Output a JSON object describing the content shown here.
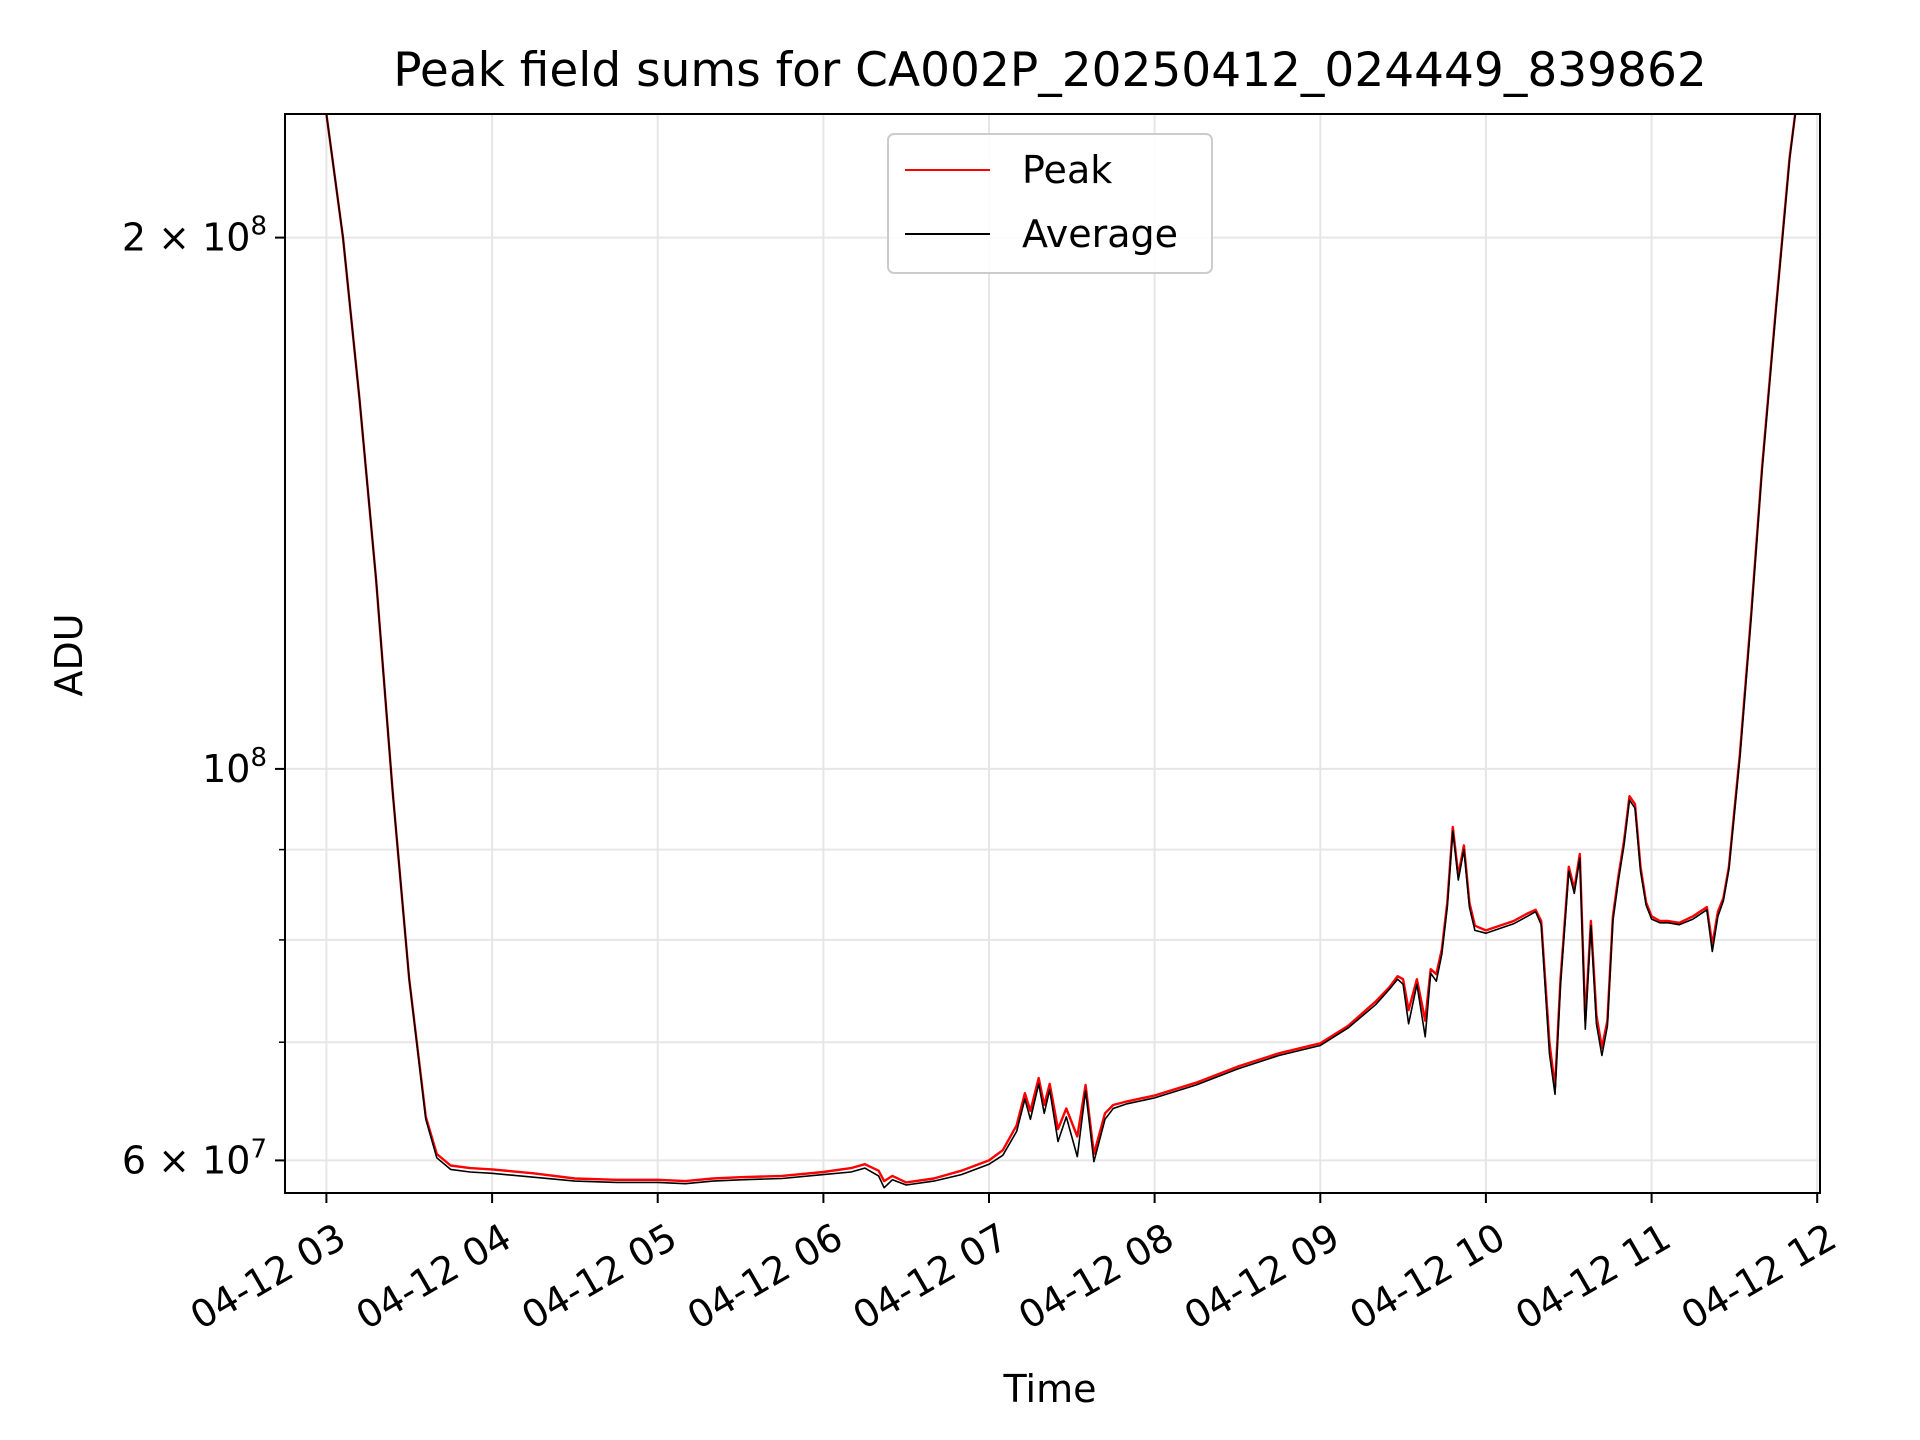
{
  "chart_data": {
    "type": "line",
    "title": "Peak field sums for CA002P_20250412_024449_839862",
    "xlabel": "Time",
    "ylabel": "ADU",
    "y_scale": "log",
    "ylim": [
      57500000,
      235000000
    ],
    "xlim": [
      "2025-04-12 02:45",
      "2025-04-12 12:01"
    ],
    "grid": true,
    "legend_position": "top-center",
    "x_ticks": [
      "04-12 03",
      "04-12 04",
      "04-12 05",
      "04-12 06",
      "04-12 07",
      "04-12 08",
      "04-12 09",
      "04-12 10",
      "04-12 11",
      "04-12 12"
    ],
    "x_tick_times": [
      "2025-04-12 03:00",
      "2025-04-12 04:00",
      "2025-04-12 05:00",
      "2025-04-12 06:00",
      "2025-04-12 07:00",
      "2025-04-12 08:00",
      "2025-04-12 09:00",
      "2025-04-12 10:00",
      "2025-04-12 11:00",
      "2025-04-12 12:00"
    ],
    "y_ticks_major": [
      {
        "value": 60000000,
        "base": "6 × 10",
        "exp": "7"
      },
      {
        "value": 100000000,
        "base": "10",
        "exp": "8"
      },
      {
        "value": 200000000,
        "base": "2 × 10",
        "exp": "8"
      }
    ],
    "y_ticks_minor": [
      70000000,
      80000000,
      90000000
    ],
    "series": [
      {
        "name": "Peak",
        "color": "#ff0000",
        "x": [
          "2025-04-12 03:00",
          "2025-04-12 03:06",
          "2025-04-12 03:12",
          "2025-04-12 03:18",
          "2025-04-12 03:24",
          "2025-04-12 03:30",
          "2025-04-12 03:36",
          "2025-04-12 03:40",
          "2025-04-12 03:45",
          "2025-04-12 03:52",
          "2025-04-12 04:00",
          "2025-04-12 04:15",
          "2025-04-12 04:30",
          "2025-04-12 04:45",
          "2025-04-12 05:00",
          "2025-04-12 05:10",
          "2025-04-12 05:20",
          "2025-04-12 05:30",
          "2025-04-12 05:45",
          "2025-04-12 06:00",
          "2025-04-12 06:10",
          "2025-04-12 06:15",
          "2025-04-12 06:20",
          "2025-04-12 06:22",
          "2025-04-12 06:25",
          "2025-04-12 06:30",
          "2025-04-12 06:40",
          "2025-04-12 06:50",
          "2025-04-12 07:00",
          "2025-04-12 07:05",
          "2025-04-12 07:10",
          "2025-04-12 07:13",
          "2025-04-12 07:15",
          "2025-04-12 07:18",
          "2025-04-12 07:20",
          "2025-04-12 07:22",
          "2025-04-12 07:25",
          "2025-04-12 07:28",
          "2025-04-12 07:32",
          "2025-04-12 07:35",
          "2025-04-12 07:38",
          "2025-04-12 07:42",
          "2025-04-12 07:45",
          "2025-04-12 07:50",
          "2025-04-12 08:00",
          "2025-04-12 08:15",
          "2025-04-12 08:30",
          "2025-04-12 08:45",
          "2025-04-12 09:00",
          "2025-04-12 09:10",
          "2025-04-12 09:20",
          "2025-04-12 09:25",
          "2025-04-12 09:28",
          "2025-04-12 09:30",
          "2025-04-12 09:32",
          "2025-04-12 09:35",
          "2025-04-12 09:38",
          "2025-04-12 09:40",
          "2025-04-12 09:42",
          "2025-04-12 09:44",
          "2025-04-12 09:46",
          "2025-04-12 09:48",
          "2025-04-12 09:50",
          "2025-04-12 09:52",
          "2025-04-12 09:54",
          "2025-04-12 09:56",
          "2025-04-12 10:00",
          "2025-04-12 10:10",
          "2025-04-12 10:15",
          "2025-04-12 10:18",
          "2025-04-12 10:20",
          "2025-04-12 10:23",
          "2025-04-12 10:25",
          "2025-04-12 10:27",
          "2025-04-12 10:30",
          "2025-04-12 10:32",
          "2025-04-12 10:34",
          "2025-04-12 10:36",
          "2025-04-12 10:38",
          "2025-04-12 10:40",
          "2025-04-12 10:42",
          "2025-04-12 10:44",
          "2025-04-12 10:46",
          "2025-04-12 10:48",
          "2025-04-12 10:50",
          "2025-04-12 10:52",
          "2025-04-12 10:54",
          "2025-04-12 10:56",
          "2025-04-12 10:58",
          "2025-04-12 11:00",
          "2025-04-12 11:03",
          "2025-04-12 11:06",
          "2025-04-12 11:10",
          "2025-04-12 11:15",
          "2025-04-12 11:20",
          "2025-04-12 11:22",
          "2025-04-12 11:24",
          "2025-04-12 11:26",
          "2025-04-12 11:28",
          "2025-04-12 11:32",
          "2025-04-12 11:36",
          "2025-04-12 11:40",
          "2025-04-12 11:45",
          "2025-04-12 11:50",
          "2025-04-12 11:52"
        ],
        "y": [
          235000000,
          200000000,
          162000000,
          128000000,
          97000000,
          76000000,
          63500000,
          60500000,
          59600000,
          59400000,
          59300000,
          59000000,
          58600000,
          58500000,
          58500000,
          58400000,
          58600000,
          58700000,
          58800000,
          59100000,
          59400000,
          59700000,
          59200000,
          58400000,
          58800000,
          58300000,
          58600000,
          59200000,
          60000000,
          60800000,
          62800000,
          65500000,
          64000000,
          66800000,
          64500000,
          66300000,
          62500000,
          64200000,
          61900000,
          66200000,
          60500000,
          63800000,
          64500000,
          64800000,
          65300000,
          66400000,
          67800000,
          69000000,
          69900000,
          71500000,
          73800000,
          75200000,
          76300000,
          76000000,
          73000000,
          76000000,
          72000000,
          77000000,
          76500000,
          79000000,
          84000000,
          92700000,
          87000000,
          90500000,
          84000000,
          81500000,
          81000000,
          82000000,
          82800000,
          83200000,
          82000000,
          70000000,
          66000000,
          76000000,
          88000000,
          85500000,
          89500000,
          72000000,
          82000000,
          72500000,
          69500000,
          72000000,
          82500000,
          87000000,
          91000000,
          96500000,
          95500000,
          88000000,
          84000000,
          82500000,
          82000000,
          82000000,
          81800000,
          82500000,
          83500000,
          79500000,
          83000000,
          84500000,
          88000000,
          102000000,
          122000000,
          148000000,
          182000000,
          222000000,
          235000000
        ]
      },
      {
        "name": "Average",
        "color": "#000000",
        "x": [
          "2025-04-12 03:00",
          "2025-04-12 03:06",
          "2025-04-12 03:12",
          "2025-04-12 03:18",
          "2025-04-12 03:24",
          "2025-04-12 03:30",
          "2025-04-12 03:36",
          "2025-04-12 03:40",
          "2025-04-12 03:45",
          "2025-04-12 03:52",
          "2025-04-12 04:00",
          "2025-04-12 04:15",
          "2025-04-12 04:30",
          "2025-04-12 04:45",
          "2025-04-12 05:00",
          "2025-04-12 05:10",
          "2025-04-12 05:20",
          "2025-04-12 05:30",
          "2025-04-12 05:45",
          "2025-04-12 06:00",
          "2025-04-12 06:10",
          "2025-04-12 06:15",
          "2025-04-12 06:20",
          "2025-04-12 06:22",
          "2025-04-12 06:25",
          "2025-04-12 06:30",
          "2025-04-12 06:40",
          "2025-04-12 06:50",
          "2025-04-12 07:00",
          "2025-04-12 07:05",
          "2025-04-12 07:10",
          "2025-04-12 07:13",
          "2025-04-12 07:15",
          "2025-04-12 07:18",
          "2025-04-12 07:20",
          "2025-04-12 07:22",
          "2025-04-12 07:25",
          "2025-04-12 07:28",
          "2025-04-12 07:32",
          "2025-04-12 07:35",
          "2025-04-12 07:38",
          "2025-04-12 07:42",
          "2025-04-12 07:45",
          "2025-04-12 07:50",
          "2025-04-12 08:00",
          "2025-04-12 08:15",
          "2025-04-12 08:30",
          "2025-04-12 08:45",
          "2025-04-12 09:00",
          "2025-04-12 09:10",
          "2025-04-12 09:20",
          "2025-04-12 09:25",
          "2025-04-12 09:28",
          "2025-04-12 09:30",
          "2025-04-12 09:32",
          "2025-04-12 09:35",
          "2025-04-12 09:38",
          "2025-04-12 09:40",
          "2025-04-12 09:42",
          "2025-04-12 09:44",
          "2025-04-12 09:46",
          "2025-04-12 09:48",
          "2025-04-12 09:50",
          "2025-04-12 09:52",
          "2025-04-12 09:54",
          "2025-04-12 09:56",
          "2025-04-12 10:00",
          "2025-04-12 10:10",
          "2025-04-12 10:15",
          "2025-04-12 10:18",
          "2025-04-12 10:20",
          "2025-04-12 10:23",
          "2025-04-12 10:25",
          "2025-04-12 10:27",
          "2025-04-12 10:30",
          "2025-04-12 10:32",
          "2025-04-12 10:34",
          "2025-04-12 10:36",
          "2025-04-12 10:38",
          "2025-04-12 10:40",
          "2025-04-12 10:42",
          "2025-04-12 10:44",
          "2025-04-12 10:46",
          "2025-04-12 10:48",
          "2025-04-12 10:50",
          "2025-04-12 10:52",
          "2025-04-12 10:54",
          "2025-04-12 10:56",
          "2025-04-12 10:58",
          "2025-04-12 11:00",
          "2025-04-12 11:03",
          "2025-04-12 11:06",
          "2025-04-12 11:10",
          "2025-04-12 11:15",
          "2025-04-12 11:20",
          "2025-04-12 11:22",
          "2025-04-12 11:24",
          "2025-04-12 11:26",
          "2025-04-12 11:28",
          "2025-04-12 11:32",
          "2025-04-12 11:36",
          "2025-04-12 11:40",
          "2025-04-12 11:45",
          "2025-04-12 11:50",
          "2025-04-12 11:52"
        ],
        "y": [
          235000000,
          200000000,
          162000000,
          128000000,
          97000000,
          76000000,
          63300000,
          60200000,
          59300000,
          59100000,
          59000000,
          58700000,
          58400000,
          58300000,
          58300000,
          58200000,
          58400000,
          58500000,
          58600000,
          58900000,
          59100000,
          59400000,
          58800000,
          57900000,
          58500000,
          58100000,
          58400000,
          58900000,
          59700000,
          60400000,
          62300000,
          65000000,
          63300000,
          66300000,
          63800000,
          65800000,
          61500000,
          63500000,
          60300000,
          65700000,
          59900000,
          63300000,
          64200000,
          64600000,
          65100000,
          66200000,
          67600000,
          68800000,
          69700000,
          71300000,
          73500000,
          75000000,
          76000000,
          75500000,
          71700000,
          75500000,
          70500000,
          76600000,
          75800000,
          78500000,
          83500000,
          92200000,
          86500000,
          90000000,
          83500000,
          81000000,
          80700000,
          81700000,
          82500000,
          83000000,
          81600000,
          69000000,
          65400000,
          75400000,
          87500000,
          85000000,
          89000000,
          71200000,
          81500000,
          71700000,
          68800000,
          71500000,
          82000000,
          86500000,
          90500000,
          96000000,
          95000000,
          87500000,
          83700000,
          82200000,
          81800000,
          81800000,
          81600000,
          82200000,
          83200000,
          78800000,
          82500000,
          84200000,
          87700000,
          101500000,
          121500000,
          147500000,
          181500000,
          221500000,
          235000000
        ]
      }
    ]
  }
}
